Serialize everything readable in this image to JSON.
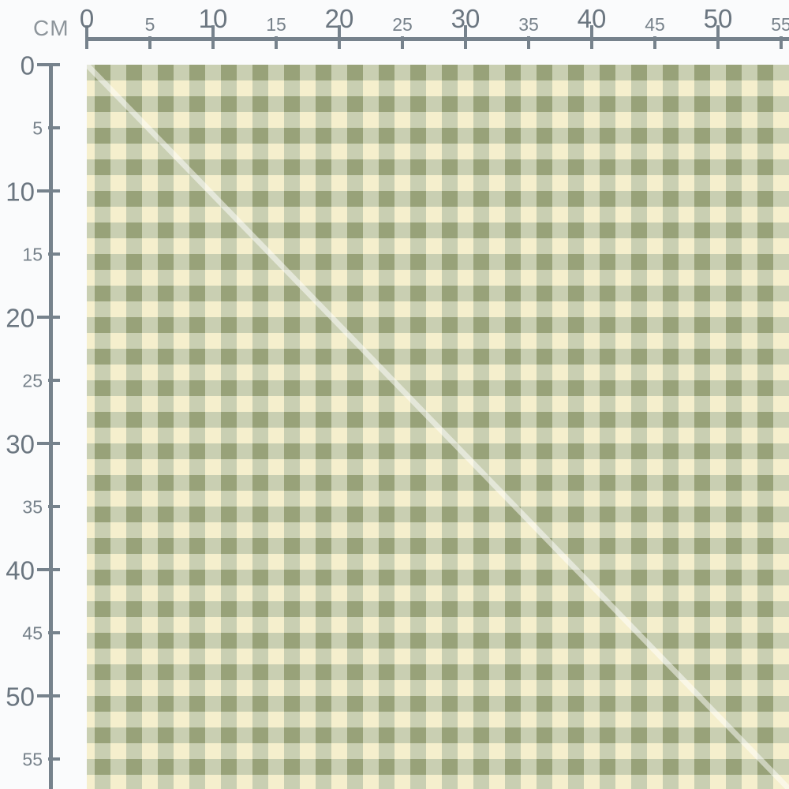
{
  "preview": {
    "description": "Fabric swatch real-scale preview with centimeter rulers",
    "pattern_name": "green gingham check"
  },
  "rulers": {
    "unit": "CM",
    "interval_cm": 5,
    "horizontal_ticks": [
      {
        "label": "0",
        "cm": 0,
        "major": true
      },
      {
        "label": "5",
        "cm": 5,
        "major": false
      },
      {
        "label": "10",
        "cm": 10,
        "major": true
      },
      {
        "label": "15",
        "cm": 15,
        "major": false
      },
      {
        "label": "20",
        "cm": 20,
        "major": true
      },
      {
        "label": "25",
        "cm": 25,
        "major": false
      },
      {
        "label": "30",
        "cm": 30,
        "major": true
      },
      {
        "label": "35",
        "cm": 35,
        "major": false
      },
      {
        "label": "40",
        "cm": 40,
        "major": true
      },
      {
        "label": "45",
        "cm": 45,
        "major": false
      },
      {
        "label": "50",
        "cm": 50,
        "major": true
      },
      {
        "label": "55",
        "cm": 55,
        "major": false
      }
    ],
    "vertical_ticks": [
      {
        "label": "0",
        "cm": 0,
        "major": true
      },
      {
        "label": "5",
        "cm": 5,
        "major": false
      },
      {
        "label": "10",
        "cm": 10,
        "major": true
      },
      {
        "label": "15",
        "cm": 15,
        "major": false
      },
      {
        "label": "20",
        "cm": 20,
        "major": true
      },
      {
        "label": "25",
        "cm": 25,
        "major": false
      },
      {
        "label": "30",
        "cm": 30,
        "major": true
      },
      {
        "label": "35",
        "cm": 35,
        "major": false
      },
      {
        "label": "40",
        "cm": 40,
        "major": true
      },
      {
        "label": "45",
        "cm": 45,
        "major": false
      },
      {
        "label": "50",
        "cm": 50,
        "major": true
      },
      {
        "label": "55",
        "cm": 55,
        "major": false
      }
    ],
    "colors": {
      "line": "#76828c",
      "label_major": "#6b7680",
      "label_minor": "#76818a",
      "unit_label": "#8d959b"
    }
  },
  "swatch": {
    "check_size_cm": 1.25,
    "colors": {
      "cream": "#f5efcd",
      "sage": "#c9cfb2",
      "dark": "#98a279",
      "watermark_line": "#ffffff"
    },
    "watermark_opacity": 0.5
  }
}
